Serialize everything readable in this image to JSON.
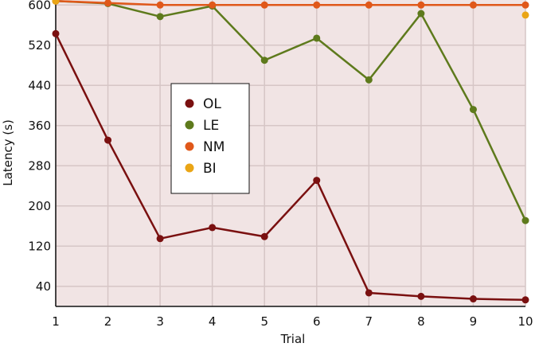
{
  "chart_data": {
    "type": "line",
    "title": "",
    "xlabel": "Trial",
    "ylabel": "Latency (s)",
    "x": [
      1,
      2,
      3,
      4,
      5,
      6,
      7,
      8,
      9,
      10
    ],
    "xlim": [
      1,
      10
    ],
    "ylim": [
      0,
      610
    ],
    "yticks": [
      40,
      120,
      200,
      280,
      360,
      440,
      520,
      600
    ],
    "grid": true,
    "legend_position": "upper-left",
    "background": "#f1e4e4",
    "grid_color": "#d6c6c6",
    "series": [
      {
        "name": "OL",
        "color": "#7a1010",
        "values": [
          543,
          331,
          135,
          157,
          139,
          251,
          27,
          20,
          15,
          13
        ]
      },
      {
        "name": "LE",
        "color": "#5e7a1c",
        "values": [
          608,
          603,
          577,
          598,
          490,
          534,
          451,
          583,
          392,
          171
        ]
      },
      {
        "name": "NM",
        "color": "#e0581a",
        "values": [
          608,
          604,
          600,
          600,
          600,
          600,
          600,
          600,
          600,
          600
        ]
      },
      {
        "name": "BI",
        "color": "#eaa515",
        "values": [
          608,
          null,
          null,
          null,
          null,
          null,
          null,
          null,
          null,
          580
        ]
      }
    ]
  }
}
